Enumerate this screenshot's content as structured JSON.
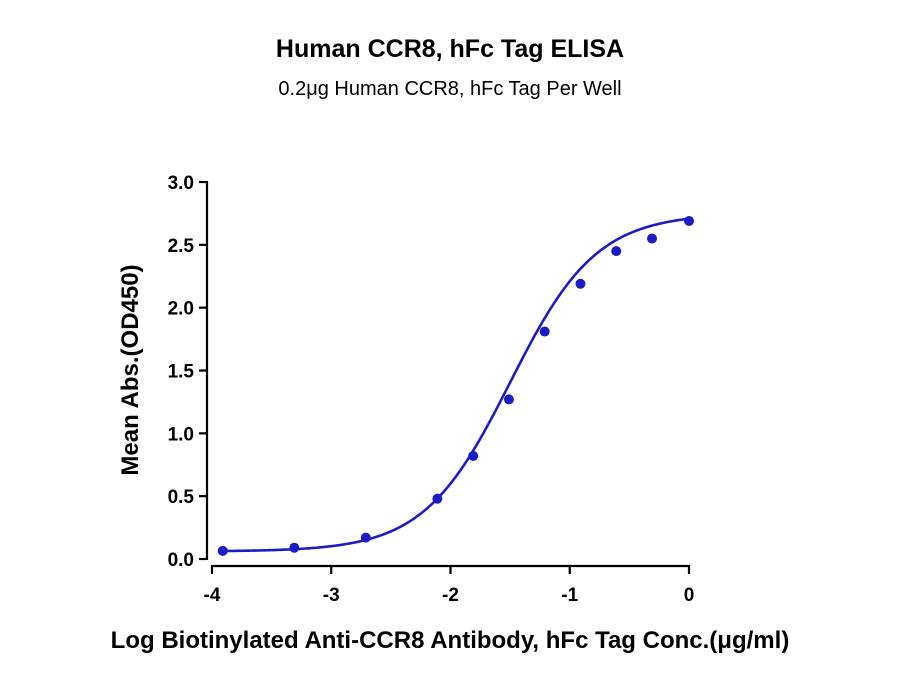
{
  "chart_data": {
    "type": "scatter",
    "title": "Human CCR8, hFc Tag ELISA",
    "subtitle": "0.2μg Human CCR8, hFc Tag Per Well",
    "xlabel": "Log Biotinylated Anti-CCR8 Antibody, hFc Tag Conc.(μg/ml)",
    "ylabel": "Mean Abs.(OD450)",
    "xlim": [
      -4,
      0
    ],
    "ylim": [
      0,
      3
    ],
    "x_ticks": [
      "-4",
      "-3",
      "-2",
      "-1",
      "0"
    ],
    "x_tick_values": [
      -4,
      -3,
      -2,
      -1,
      0
    ],
    "y_ticks": [
      "0.0",
      "0.5",
      "1.0",
      "1.5",
      "2.0",
      "2.5",
      "3.0"
    ],
    "y_tick_values": [
      0,
      0.5,
      1.0,
      1.5,
      2.0,
      2.5,
      3.0
    ],
    "grid": false,
    "legend": "none",
    "color": "#1c1cc4",
    "series": [
      {
        "x": [
          -3.91,
          -3.31,
          -2.71,
          -2.11,
          -1.81,
          -1.51,
          -1.21,
          -0.91,
          -0.61,
          -0.31,
          0.0
        ],
        "y": [
          0.065,
          0.09,
          0.17,
          0.48,
          0.82,
          1.27,
          1.81,
          2.19,
          2.45,
          2.55,
          2.69
        ]
      }
    ],
    "fit_curve": {
      "model": "4PL",
      "bottom": 0.06,
      "top": 2.75,
      "logEC50": -1.5,
      "hill": 1.2
    }
  }
}
